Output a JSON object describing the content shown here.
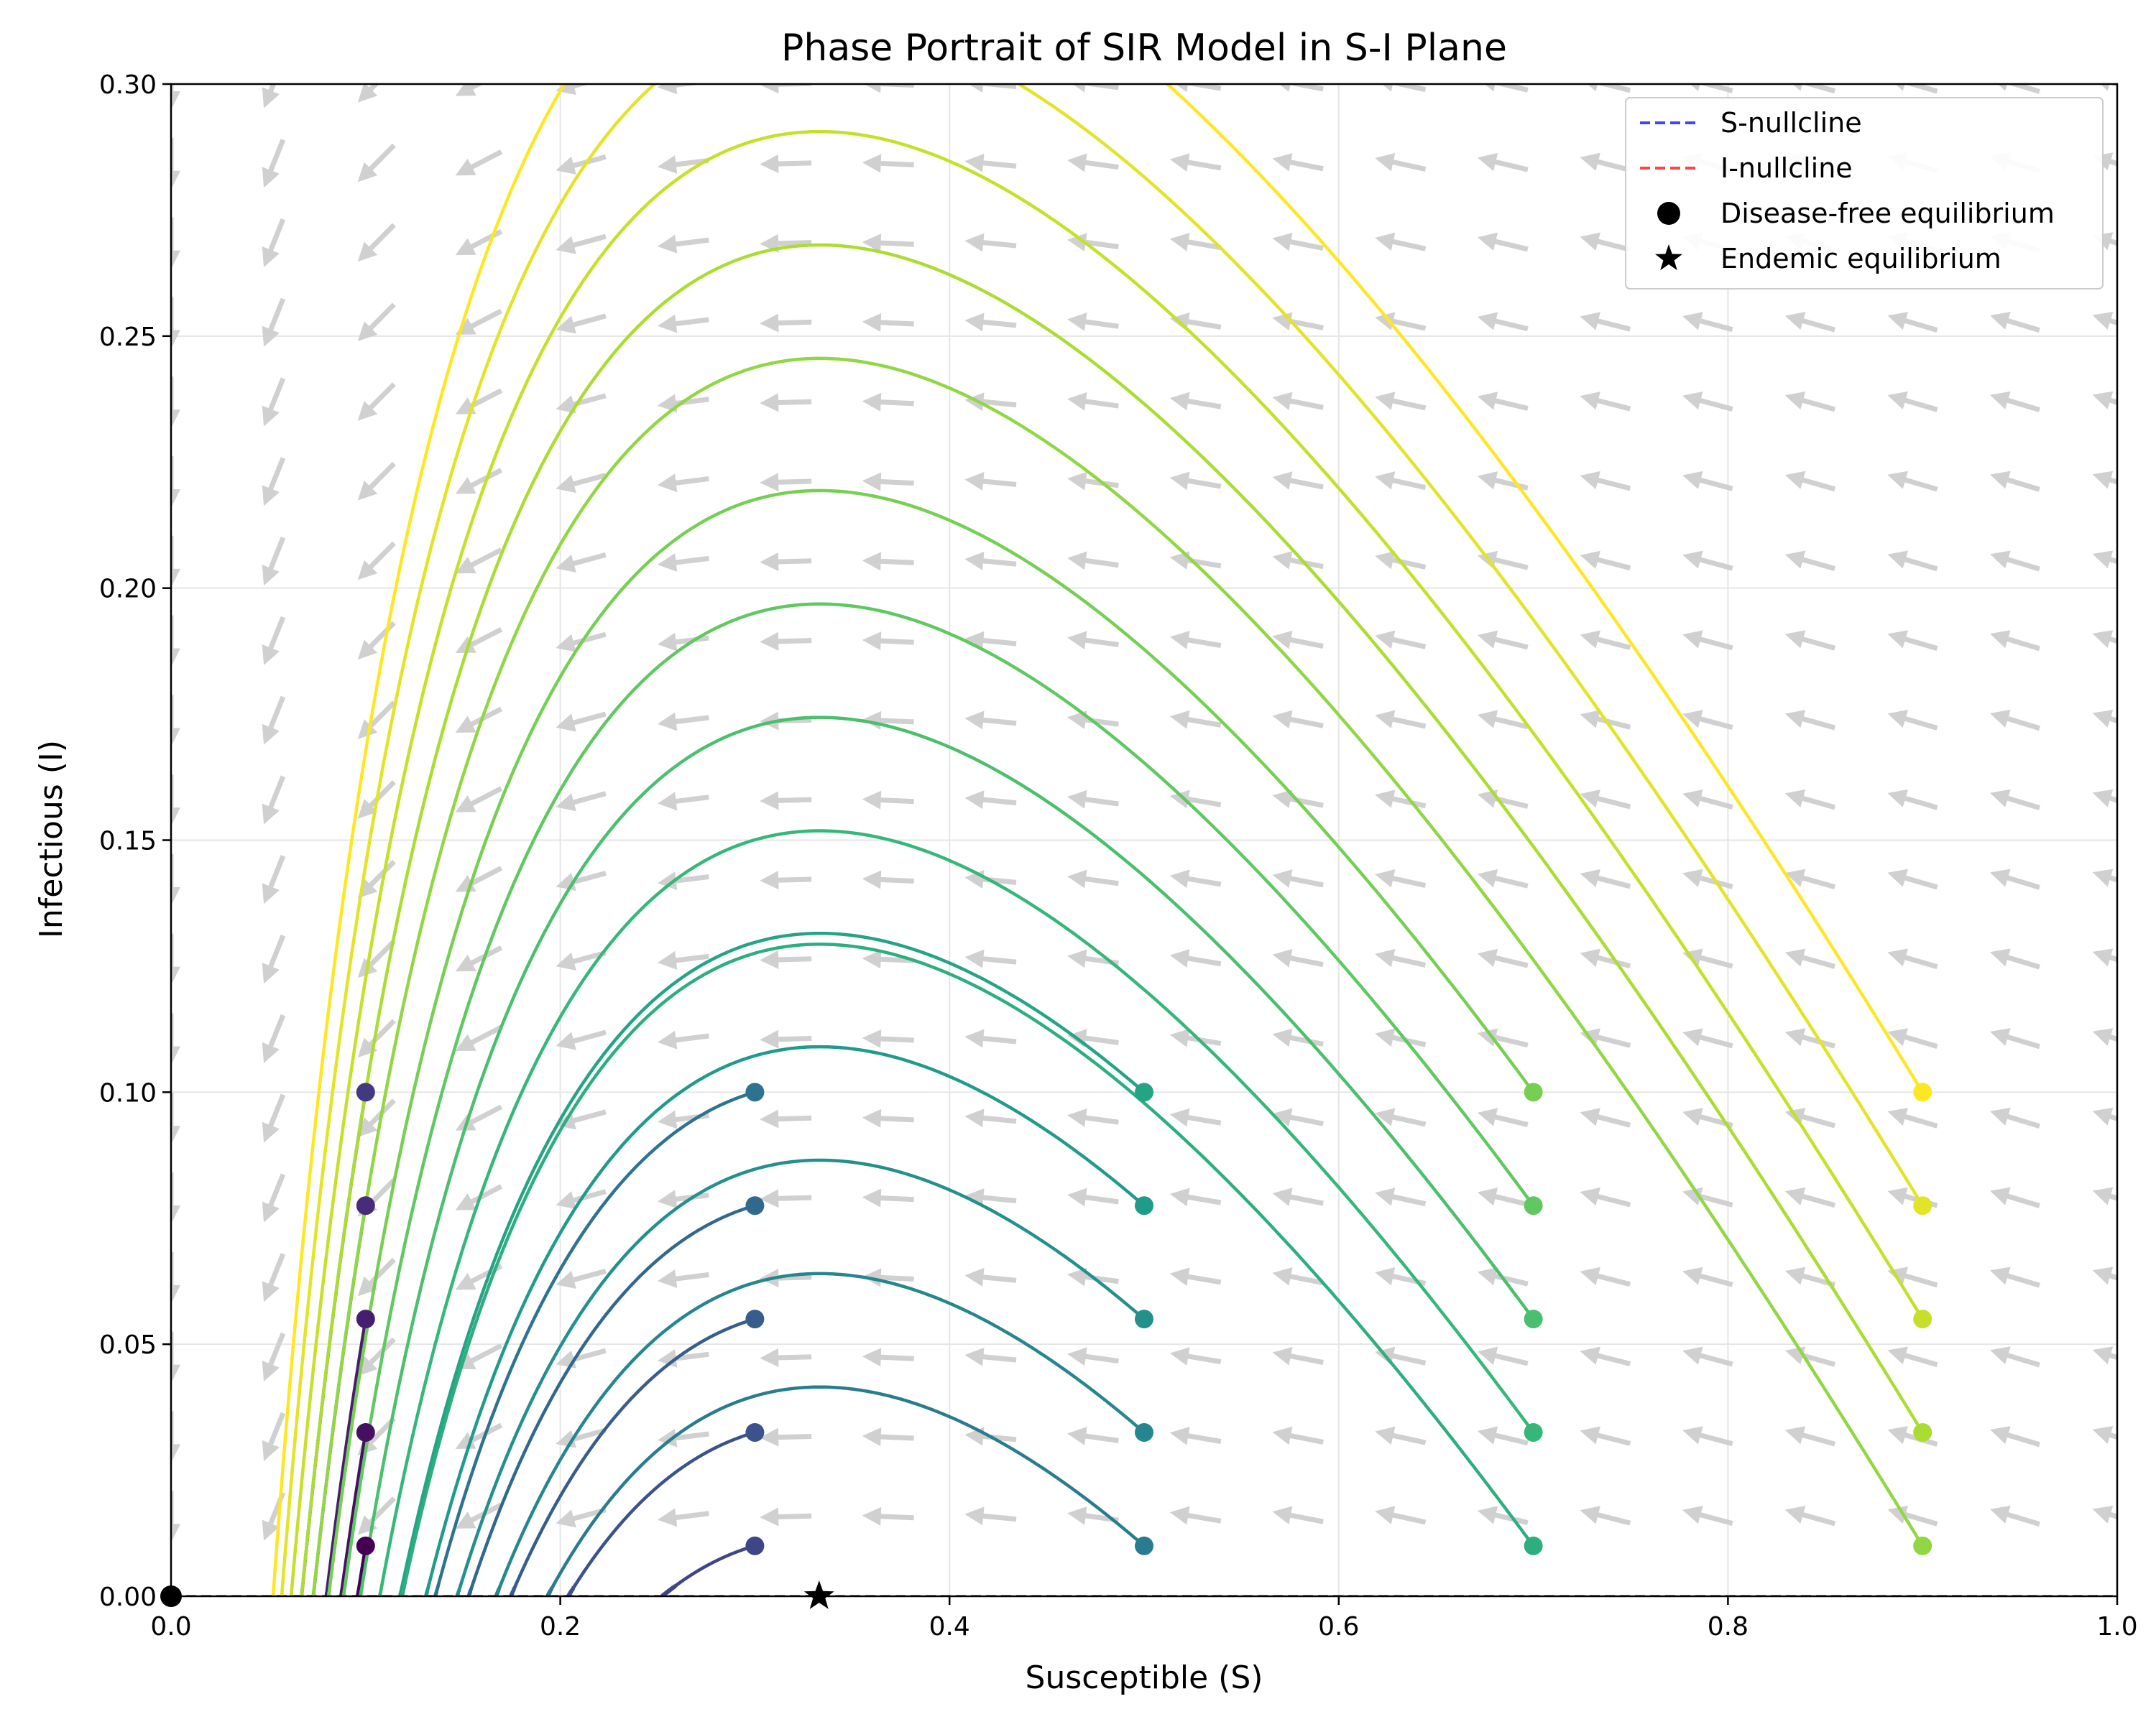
{
  "chart_data": {
    "type": "line",
    "title": "Phase Portrait of SIR Model in S-I Plane",
    "xlabel": "Susceptible (S)",
    "ylabel": "Infectious (I)",
    "xlim": [
      0.0,
      1.0
    ],
    "ylim": [
      0.0,
      0.3
    ],
    "grid": true,
    "legend_position": "top-right",
    "x_ticks": [
      "0.0",
      "0.2",
      "0.4",
      "0.6",
      "0.8",
      "1.0"
    ],
    "y_ticks": [
      "0.00",
      "0.05",
      "0.10",
      "0.15",
      "0.20",
      "0.25",
      "0.30"
    ],
    "legend": [
      {
        "label": "S-nullcline",
        "style": "dashed",
        "color": "#4444ff"
      },
      {
        "label": "I-nullcline",
        "style": "dashed",
        "color": "#ff4444"
      },
      {
        "label": "Disease-free equilibrium",
        "marker": "circle",
        "color": "#000000"
      },
      {
        "label": "Endemic equilibrium",
        "marker": "star",
        "color": "#000000"
      }
    ],
    "model": {
      "beta": 3.0,
      "gamma": 1.0
    },
    "initial_conditions_S": [
      0.1,
      0.3,
      0.5,
      0.7,
      0.9
    ],
    "initial_conditions_I": [
      0.01,
      0.0325,
      0.055,
      0.0775,
      0.1
    ],
    "trajectory_colormap": "viridis",
    "vector_field_color": "#d0d0d0",
    "disease_free_equilibrium": {
      "S": 0.0,
      "I": 0.0
    },
    "endemic_equilibrium": {
      "S": 0.333,
      "I": 0.0
    }
  }
}
